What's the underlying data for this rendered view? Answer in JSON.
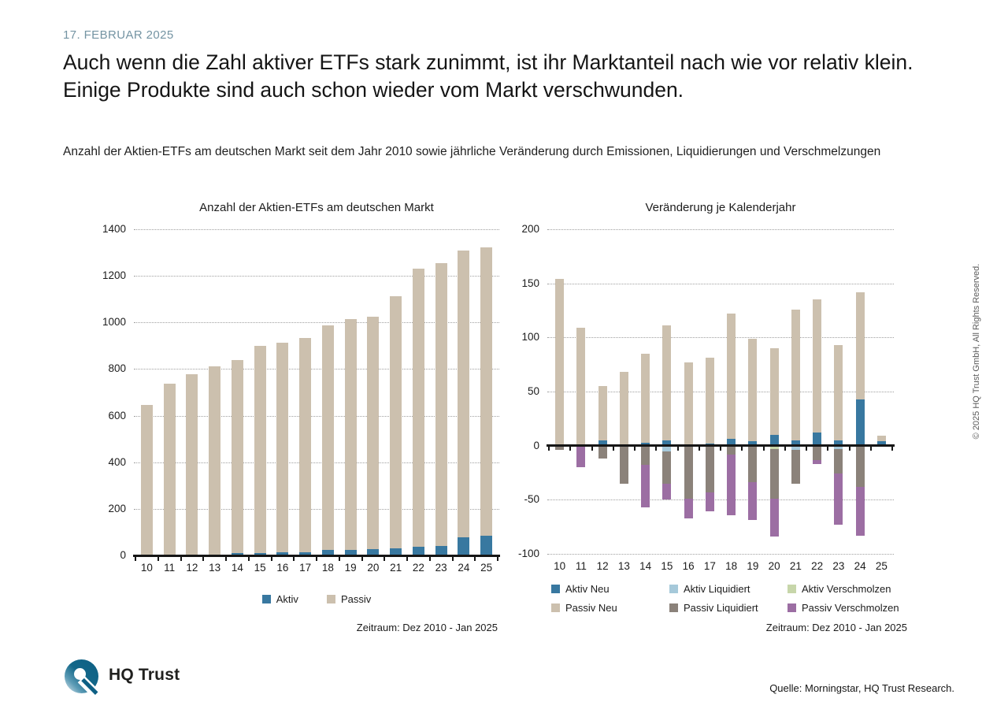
{
  "page": {
    "date": "17. FEBRUAR 2025",
    "title": "Auch wenn die Zahl aktiver ETFs stark zunimmt, ist ihr Marktanteil nach wie vor relativ klein. Einige Produkte sind auch schon wieder vom Markt verschwunden.",
    "subtitle": "Anzahl der Aktien-ETFs am deutschen Markt seit dem Jahr 2010 sowie jährliche Veränderung durch Emissionen, Liquidierungen und Verschmelzungen",
    "copyright_vertical": "© 2025 HQ Trust GmbH, All Rights Reserved.",
    "brand_name": "HQ Trust",
    "source": "Quelle: Morningstar, HQ Trust Research."
  },
  "colors": {
    "accent_date": "#7494a3",
    "aktiv_blue": "#3878a0",
    "passiv_beige": "#ccc0ae",
    "aktiv_liquidiert_lightblue": "#a6c9da",
    "aktiv_verschmolzen_green": "#c7d6aa",
    "passiv_liquidiert_gray": "#8b827a",
    "passiv_verschmolzen_purple": "#9c6ea3"
  },
  "chart_data": [
    {
      "type": "bar",
      "stacked": true,
      "title": "Anzahl der Aktien-ETFs am deutschen Markt",
      "categories": [
        "10",
        "11",
        "12",
        "13",
        "14",
        "15",
        "16",
        "17",
        "18",
        "19",
        "20",
        "21",
        "22",
        "23",
        "24",
        "25"
      ],
      "series": [
        {
          "name": "Aktiv",
          "color": "#3878a0",
          "values": [
            1,
            2,
            3,
            5,
            9,
            11,
            12,
            15,
            22,
            25,
            28,
            30,
            38,
            39,
            78,
            85
          ]
        },
        {
          "name": "Passiv",
          "color": "#ccc0ae",
          "values": [
            644,
            735,
            775,
            805,
            831,
            889,
            900,
            917,
            966,
            990,
            996,
            1083,
            1192,
            1214,
            1232,
            1237
          ]
        }
      ],
      "totals": [
        645,
        737,
        778,
        810,
        840,
        900,
        912,
        932,
        988,
        1015,
        1024,
        1113,
        1230,
        1253,
        1310,
        1322
      ],
      "ylim": [
        0,
        1400
      ],
      "ytick_step": 200,
      "grid": "horizontal-dotted",
      "legend_position": "bottom",
      "footnote": "Zeitraum: Dez 2010 - Jan 2025"
    },
    {
      "type": "bar",
      "stacked": true,
      "title": "Veränderung je Kalenderjahr",
      "categories": [
        "10",
        "11",
        "12",
        "13",
        "14",
        "15",
        "16",
        "17",
        "18",
        "19",
        "20",
        "21",
        "22",
        "23",
        "24",
        "25"
      ],
      "series": [
        {
          "name": "Aktiv Neu",
          "color": "#3878a0",
          "values": [
            0,
            0,
            5,
            0,
            3,
            5,
            0,
            2,
            6,
            4,
            10,
            5,
            12,
            5,
            43,
            4
          ]
        },
        {
          "name": "Aktiv Liquidiert",
          "color": "#a6c9da",
          "values": [
            0,
            0,
            0,
            0,
            0,
            -5,
            0,
            0,
            0,
            0,
            0,
            -4,
            0,
            -3,
            0,
            0
          ]
        },
        {
          "name": "Aktiv Verschmolzen",
          "color": "#c7d6aa",
          "values": [
            0,
            0,
            0,
            0,
            0,
            0,
            0,
            0,
            0,
            0,
            -3,
            0,
            0,
            0,
            0,
            0
          ]
        },
        {
          "name": "Passiv Neu",
          "color": "#ccc0ae",
          "values": [
            154,
            109,
            50,
            68,
            82,
            106,
            77,
            79,
            116,
            95,
            80,
            121,
            123,
            88,
            99,
            5
          ]
        },
        {
          "name": "Passiv Liquidiert",
          "color": "#8b827a",
          "values": [
            -4,
            0,
            -12,
            -35,
            -18,
            -30,
            -49,
            -43,
            -8,
            -34,
            -46,
            -31,
            -13,
            -23,
            -38,
            0
          ]
        },
        {
          "name": "Passiv Verschmolzen",
          "color": "#9c6ea3",
          "values": [
            0,
            -20,
            0,
            0,
            -39,
            -15,
            -18,
            -18,
            -56,
            -35,
            -35,
            0,
            -4,
            -47,
            -45,
            0
          ]
        }
      ],
      "ylim": [
        -100,
        200
      ],
      "ytick_step": 50,
      "grid": "horizontal-dotted",
      "legend_position": "bottom",
      "footnote": "Zeitraum: Dez 2010 - Jan 2025"
    }
  ]
}
